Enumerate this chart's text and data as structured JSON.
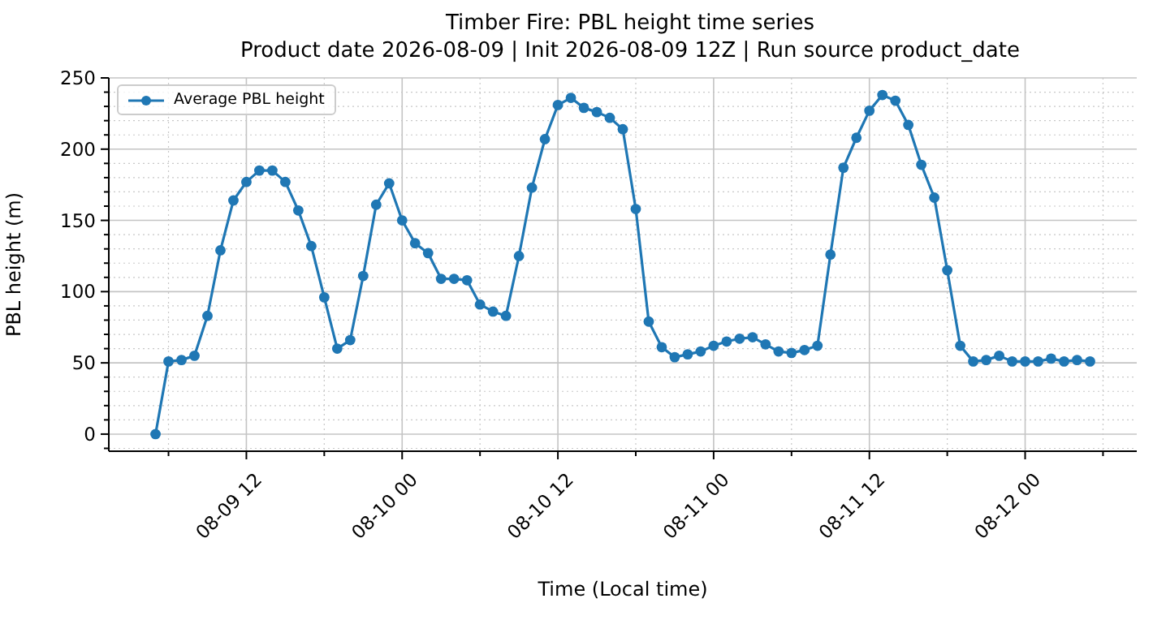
{
  "chart_data": {
    "type": "line",
    "title": "Timber Fire: PBL height time series",
    "subtitle": "Product date 2026-08-09 | Init 2026-08-09 12Z | Run source product_date",
    "xlabel": "Time (Local time)",
    "ylabel": "PBL height (m)",
    "x": [
      "2026-08-09T05:00",
      "2026-08-09T06:00",
      "2026-08-09T07:00",
      "2026-08-09T08:00",
      "2026-08-09T09:00",
      "2026-08-09T10:00",
      "2026-08-09T11:00",
      "2026-08-09T12:00",
      "2026-08-09T13:00",
      "2026-08-09T14:00",
      "2026-08-09T15:00",
      "2026-08-09T16:00",
      "2026-08-09T17:00",
      "2026-08-09T18:00",
      "2026-08-09T19:00",
      "2026-08-09T20:00",
      "2026-08-09T21:00",
      "2026-08-09T22:00",
      "2026-08-09T23:00",
      "2026-08-10T00:00",
      "2026-08-10T01:00",
      "2026-08-10T02:00",
      "2026-08-10T03:00",
      "2026-08-10T04:00",
      "2026-08-10T05:00",
      "2026-08-10T06:00",
      "2026-08-10T07:00",
      "2026-08-10T08:00",
      "2026-08-10T09:00",
      "2026-08-10T10:00",
      "2026-08-10T11:00",
      "2026-08-10T12:00",
      "2026-08-10T13:00",
      "2026-08-10T14:00",
      "2026-08-10T15:00",
      "2026-08-10T16:00",
      "2026-08-10T17:00",
      "2026-08-10T18:00",
      "2026-08-10T19:00",
      "2026-08-10T20:00",
      "2026-08-10T21:00",
      "2026-08-10T22:00",
      "2026-08-10T23:00",
      "2026-08-11T00:00",
      "2026-08-11T01:00",
      "2026-08-11T02:00",
      "2026-08-11T03:00",
      "2026-08-11T04:00",
      "2026-08-11T05:00",
      "2026-08-11T06:00",
      "2026-08-11T07:00",
      "2026-08-11T08:00",
      "2026-08-11T09:00",
      "2026-08-11T10:00",
      "2026-08-11T11:00",
      "2026-08-11T12:00",
      "2026-08-11T13:00",
      "2026-08-11T14:00",
      "2026-08-11T15:00",
      "2026-08-11T16:00",
      "2026-08-11T17:00",
      "2026-08-11T18:00",
      "2026-08-11T19:00",
      "2026-08-11T20:00",
      "2026-08-11T21:00",
      "2026-08-11T22:00",
      "2026-08-11T23:00",
      "2026-08-12T00:00",
      "2026-08-12T01:00",
      "2026-08-12T02:00",
      "2026-08-12T03:00",
      "2026-08-12T04:00",
      "2026-08-12T05:00"
    ],
    "series": [
      {
        "name": "Average PBL height",
        "color": "#1f77b4",
        "values": [
          0,
          51,
          52,
          55,
          83,
          129,
          164,
          177,
          185,
          185,
          177,
          157,
          132,
          96,
          60,
          66,
          111,
          161,
          176,
          150,
          134,
          127,
          109,
          109,
          108,
          91,
          86,
          83,
          125,
          173,
          207,
          231,
          236,
          229,
          226,
          222,
          214,
          158,
          79,
          61,
          54,
          56,
          58,
          62,
          65,
          67,
          68,
          63,
          58,
          57,
          59,
          62,
          126,
          187,
          208,
          227,
          238,
          234,
          217,
          189,
          166,
          115,
          62,
          51,
          52,
          55,
          51,
          51,
          51,
          53,
          51,
          52,
          51
        ]
      }
    ],
    "xlim": [
      "2026-08-09T01:24",
      "2026-08-12T08:36"
    ],
    "xticks": [
      {
        "value": "2026-08-09T06:00",
        "label": null
      },
      {
        "value": "2026-08-09T12:00",
        "label": "08-09 12"
      },
      {
        "value": "2026-08-09T18:00",
        "label": null
      },
      {
        "value": "2026-08-10T00:00",
        "label": "08-10 00"
      },
      {
        "value": "2026-08-10T06:00",
        "label": null
      },
      {
        "value": "2026-08-10T12:00",
        "label": "08-10 12"
      },
      {
        "value": "2026-08-10T18:00",
        "label": null
      },
      {
        "value": "2026-08-11T00:00",
        "label": "08-11 00"
      },
      {
        "value": "2026-08-11T06:00",
        "label": null
      },
      {
        "value": "2026-08-11T12:00",
        "label": "08-11 12"
      },
      {
        "value": "2026-08-11T18:00",
        "label": null
      },
      {
        "value": "2026-08-12T00:00",
        "label": "08-12 00"
      },
      {
        "value": "2026-08-12T06:00",
        "label": null
      }
    ],
    "ylim": [
      -12,
      250
    ],
    "yticks": [
      {
        "value": -10,
        "label": null
      },
      0,
      {
        "value": 10,
        "label": null
      },
      {
        "value": 20,
        "label": null
      },
      {
        "value": 30,
        "label": null
      },
      {
        "value": 40,
        "label": null
      },
      50,
      {
        "value": 60,
        "label": null
      },
      {
        "value": 70,
        "label": null
      },
      {
        "value": 80,
        "label": null
      },
      {
        "value": 90,
        "label": null
      },
      100,
      {
        "value": 110,
        "label": null
      },
      {
        "value": 120,
        "label": null
      },
      {
        "value": 130,
        "label": null
      },
      {
        "value": 140,
        "label": null
      },
      150,
      {
        "value": 160,
        "label": null
      },
      {
        "value": 170,
        "label": null
      },
      {
        "value": 180,
        "label": null
      },
      {
        "value": 190,
        "label": null
      },
      200,
      {
        "value": 210,
        "label": null
      },
      {
        "value": 220,
        "label": null
      },
      {
        "value": 230,
        "label": null
      },
      {
        "value": 240,
        "label": null
      },
      250
    ],
    "grid": true,
    "legend": "top left",
    "marker": "circle",
    "line_style": "solid"
  }
}
